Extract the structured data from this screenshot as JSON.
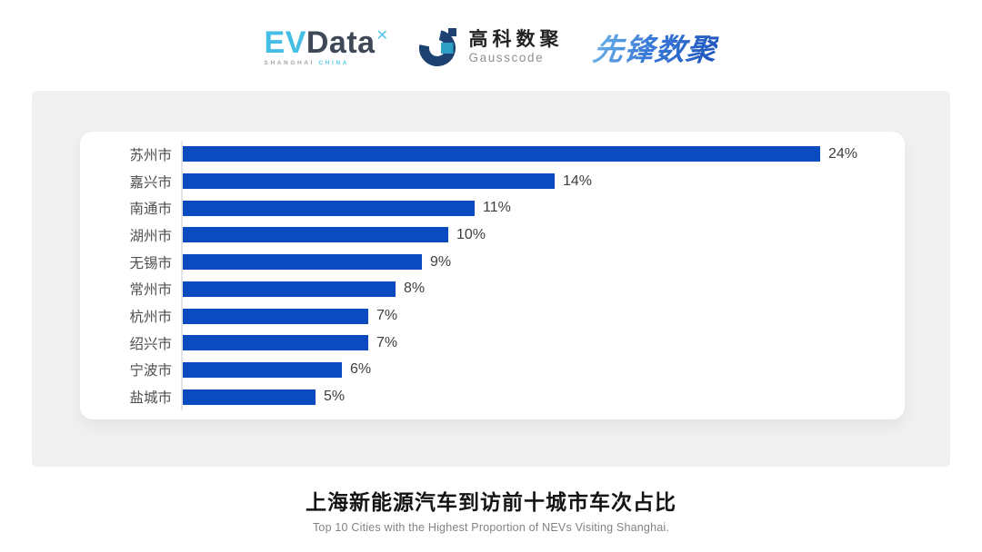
{
  "header": {
    "evdata": {
      "ev": "EV",
      "data": "Data",
      "sub_left": "SHANGHAI",
      "sub_right": "CHINA"
    },
    "gausscode": {
      "cn": "高科数聚",
      "en": "Gausscode"
    },
    "xianfeng": {
      "text": "先锋数聚"
    }
  },
  "chart_data": {
    "type": "bar",
    "orientation": "horizontal",
    "categories": [
      "苏州市",
      "嘉兴市",
      "南通市",
      "湖州市",
      "无锡市",
      "常州市",
      "杭州市",
      "绍兴市",
      "宁波市",
      "盐城市"
    ],
    "values": [
      24,
      14,
      11,
      10,
      9,
      8,
      7,
      7,
      6,
      5
    ],
    "value_labels": [
      "24%",
      "14%",
      "11%",
      "10%",
      "9%",
      "8%",
      "7%",
      "7%",
      "6%",
      "5%"
    ],
    "unit": "%",
    "xlim": [
      0,
      24
    ],
    "grid": "off",
    "legend": "none",
    "bar_color": "#0b4bc0",
    "title": "上海新能源汽车到访前十城市车次占比",
    "subtitle": "Top 10 Cities with the Highest Proportion of NEVs Visiting Shanghai."
  },
  "colors": {
    "bar_blue": "#0b4bc0",
    "panel_gray": "#f0f0f1",
    "evdata_light_blue": "#45bee6",
    "evdata_dark": "#3e4857",
    "gauss_navy": "#1d4272",
    "gauss_teal": "#2e9fc4",
    "xianfeng_blue": "#2f6fd0"
  }
}
